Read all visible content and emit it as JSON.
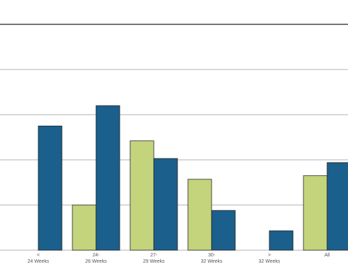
{
  "chart_data": {
    "type": "bar",
    "categories": [
      [
        "<",
        "24 Weeks"
      ],
      [
        "24-",
        "26 Weeks"
      ],
      [
        "27-",
        "29 Weeks"
      ],
      [
        "30-",
        "32 Weeks"
      ],
      [
        ">",
        "32 Weeks"
      ],
      [
        "All"
      ]
    ],
    "series": [
      {
        "color": "#c4d47c",
        "values": [
          null,
          1.0,
          2.42,
          1.57,
          null,
          1.65
        ]
      },
      {
        "color": "#1b5f8c",
        "values": [
          2.75,
          3.2,
          2.03,
          0.88,
          0.43,
          1.94
        ]
      }
    ],
    "ylim": [
      0,
      5
    ],
    "yticks": [
      0,
      1,
      2,
      3,
      4,
      5
    ],
    "grid": true
  }
}
